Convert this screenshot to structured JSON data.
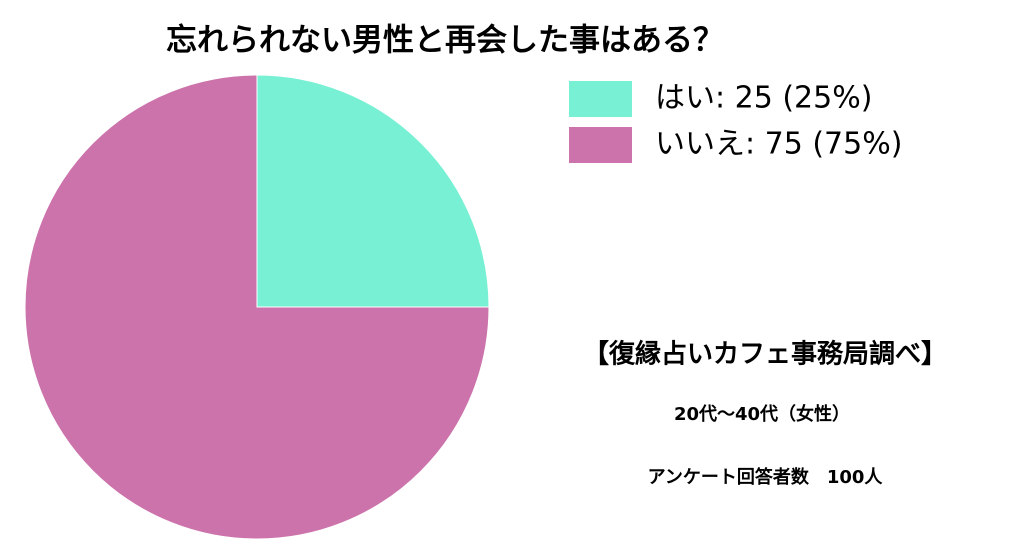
{
  "chart_data": {
    "type": "pie",
    "title": "忘れられない男性と再会した事はある？",
    "categories": [
      "はい: 25 (25%)",
      "いいえ: 75 (75%)"
    ],
    "values": [
      25,
      75
    ],
    "colors": [
      "#78f0d4",
      "#cc73ac"
    ],
    "legend": "top-right",
    "annotations": [
      "【復縁占いカフェ事務局調べ】",
      "20代〜40代（女性）",
      "アンケート回答者数　100人"
    ]
  }
}
